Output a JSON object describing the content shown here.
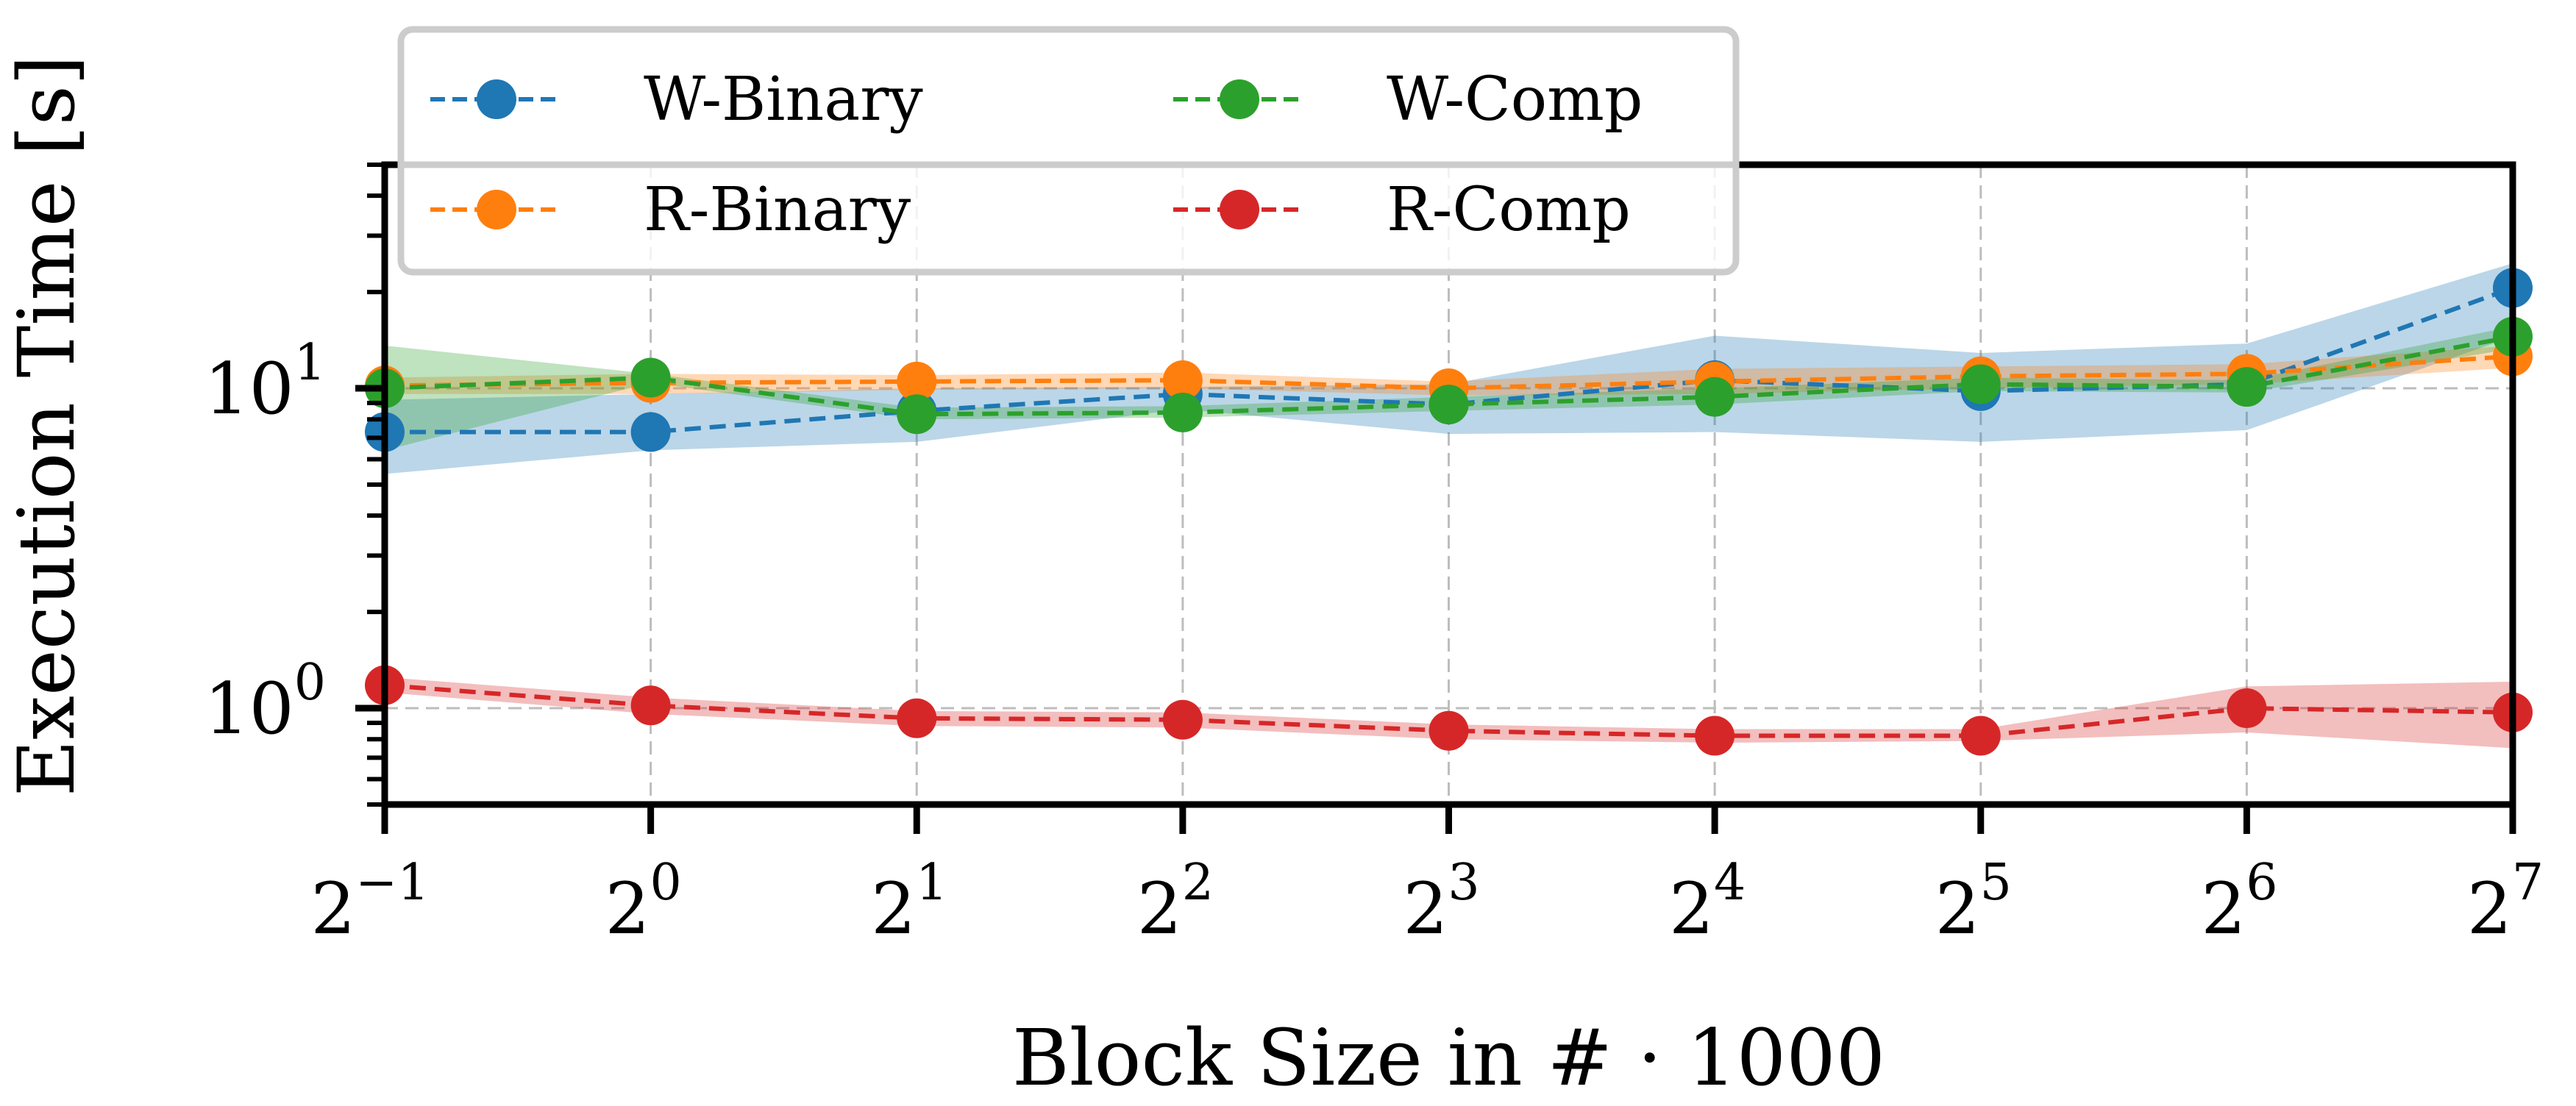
{
  "chart_data": {
    "type": "line",
    "title": "",
    "xlabel": "Block Size in # · 1000",
    "ylabel": "Execution Time [s]",
    "xscale": "log2",
    "yscale": "log10",
    "x_exponents": [
      -1,
      0,
      1,
      2,
      3,
      4,
      5,
      6,
      7
    ],
    "x": [
      0.5,
      1,
      2,
      4,
      8,
      16,
      32,
      64,
      128
    ],
    "x_tick_labels": [
      {
        "base": "2",
        "exp": "−1"
      },
      {
        "base": "2",
        "exp": "0"
      },
      {
        "base": "2",
        "exp": "1"
      },
      {
        "base": "2",
        "exp": "2"
      },
      {
        "base": "2",
        "exp": "3"
      },
      {
        "base": "2",
        "exp": "4"
      },
      {
        "base": "2",
        "exp": "5"
      },
      {
        "base": "2",
        "exp": "6"
      },
      {
        "base": "2",
        "exp": "7"
      }
    ],
    "y_tick_labels": [
      {
        "value": 1,
        "base": "10",
        "exp": "0"
      },
      {
        "value": 10,
        "base": "10",
        "exp": "1"
      }
    ],
    "xlim": [
      0.5,
      128
    ],
    "ylim": [
      0.5,
      50
    ],
    "grid": true,
    "legend_position": "top-left",
    "legend_columns": 2,
    "series": [
      {
        "name": "W-Binary",
        "color": "#1f77b4",
        "values": [
          7.3,
          7.3,
          8.5,
          9.6,
          8.9,
          10.6,
          9.8,
          10.3,
          20.6
        ],
        "band_low": [
          5.4,
          6.4,
          6.8,
          8.6,
          7.2,
          7.3,
          6.8,
          7.4,
          14.5
        ],
        "band_high": [
          9.2,
          9.6,
          10.0,
          10.1,
          10.3,
          14.6,
          12.9,
          13.8,
          24.6
        ]
      },
      {
        "name": "R-Binary",
        "color": "#ff7f0e",
        "values": [
          10.2,
          10.4,
          10.5,
          10.6,
          10.0,
          10.5,
          10.9,
          11.1,
          12.6
        ],
        "band_low": [
          9.6,
          9.6,
          9.9,
          10.0,
          9.5,
          9.6,
          10.0,
          10.3,
          11.6
        ],
        "band_high": [
          10.8,
          11.1,
          11.0,
          11.2,
          10.5,
          11.5,
          11.7,
          11.9,
          13.6
        ]
      },
      {
        "name": "W-Comp",
        "color": "#2ca02c",
        "values": [
          10.0,
          10.8,
          8.3,
          8.4,
          8.9,
          9.4,
          10.3,
          10.1,
          14.5
        ],
        "band_low": [
          6.4,
          10.4,
          8.0,
          8.1,
          8.5,
          8.9,
          9.8,
          9.7,
          13.3
        ],
        "band_high": [
          13.6,
          11.1,
          8.7,
          8.8,
          9.4,
          10.0,
          10.8,
          10.6,
          15.6
        ]
      },
      {
        "name": "R-Comp",
        "color": "#d62728",
        "values": [
          1.18,
          1.02,
          0.93,
          0.92,
          0.85,
          0.82,
          0.82,
          1.0,
          0.97
        ],
        "band_low": [
          1.12,
          0.96,
          0.88,
          0.87,
          0.8,
          0.78,
          0.79,
          0.84,
          0.75
        ],
        "band_high": [
          1.25,
          1.08,
          0.98,
          0.97,
          0.89,
          0.86,
          0.86,
          1.17,
          1.21
        ]
      }
    ]
  }
}
